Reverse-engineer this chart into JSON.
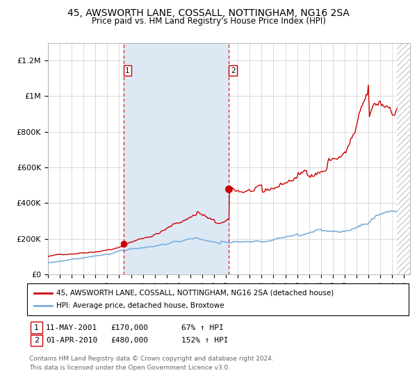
{
  "title": "45, AWSWORTH LANE, COSSALL, NOTTINGHAM, NG16 2SA",
  "subtitle": "Price paid vs. HM Land Registry's House Price Index (HPI)",
  "ylim": [
    0,
    1300000
  ],
  "xlim_left": 1995.0,
  "xlim_right": 2025.5,
  "ytick_values": [
    0,
    200000,
    400000,
    600000,
    800000,
    1000000,
    1200000
  ],
  "ytick_labels": [
    "£0",
    "£200K",
    "£400K",
    "£600K",
    "£800K",
    "£1M",
    "£1.2M"
  ],
  "xtick_values": [
    1995,
    1996,
    1997,
    1998,
    1999,
    2000,
    2001,
    2002,
    2003,
    2004,
    2005,
    2006,
    2007,
    2008,
    2009,
    2010,
    2011,
    2012,
    2013,
    2014,
    2015,
    2016,
    2017,
    2018,
    2019,
    2020,
    2021,
    2022,
    2023,
    2024,
    2025
  ],
  "transaction1_x": 2001.36,
  "transaction1_price": 170000,
  "transaction2_x": 2010.25,
  "transaction2_price": 480000,
  "property_color": "#cc0000",
  "hpi_color": "#7aaedb",
  "shaded_region_color": "#dce9f5",
  "vline_color": "#cc0000",
  "bg_color": "#ffffff",
  "grid_color": "#cccccc",
  "hatch_region_start": 2024.42,
  "hatch_region_end": 2025.5,
  "legend_property": "45, AWSWORTH LANE, COSSALL, NOTTINGHAM, NG16 2SA (detached house)",
  "legend_hpi": "HPI: Average price, detached house, Broxtowe",
  "footer": "Contains HM Land Registry data © Crown copyright and database right 2024.\nThis data is licensed under the Open Government Licence v3.0.",
  "table_rows": [
    [
      "1",
      "11-MAY-2001",
      "£170,000",
      "67% ↑ HPI"
    ],
    [
      "2",
      "01-APR-2010",
      "£480,000",
      "152% ↑ HPI"
    ]
  ]
}
